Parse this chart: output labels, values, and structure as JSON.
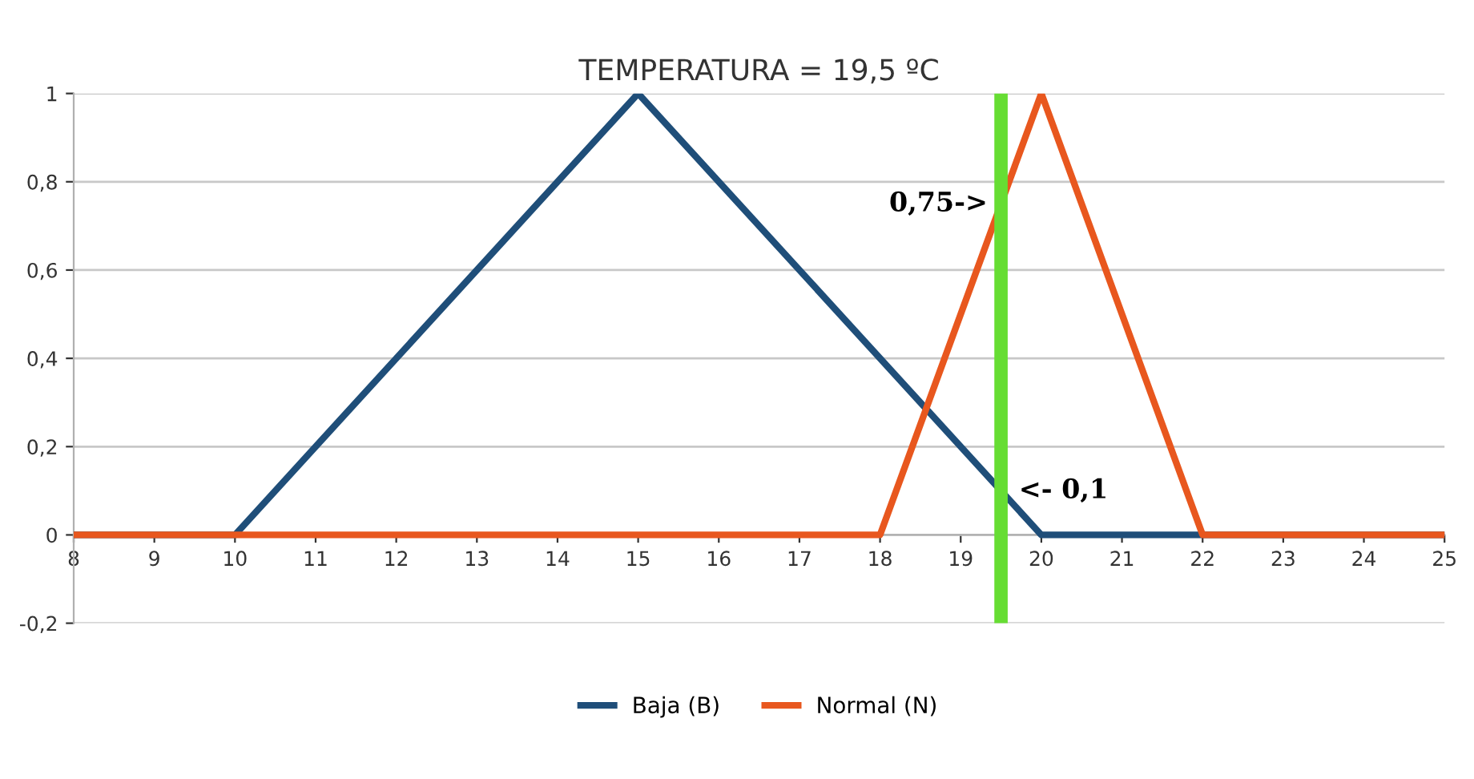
{
  "chart_data": {
    "type": "line",
    "title": "TEMPERATURA = 19,5 ºC",
    "series": [
      {
        "name": "Baja (B)",
        "color": "#1f4e79",
        "x": [
          8,
          10,
          15,
          20,
          25
        ],
        "values": [
          0,
          0,
          1,
          0,
          0
        ]
      },
      {
        "name": "Normal (N)",
        "color": "#e8571e",
        "x": [
          8,
          18,
          20,
          22,
          25
        ],
        "values": [
          0,
          0,
          1,
          0,
          0
        ]
      }
    ],
    "xlim": [
      8,
      25
    ],
    "xticks": [
      8,
      9,
      10,
      11,
      12,
      13,
      14,
      15,
      16,
      17,
      18,
      19,
      20,
      21,
      22,
      23,
      24,
      25
    ],
    "ylim": [
      -0.2,
      1
    ],
    "yticks": [
      {
        "value": -0.2,
        "label": "-0,2"
      },
      0,
      {
        "value": 0.2,
        "label": "0,2"
      },
      {
        "value": 0.4,
        "label": "0,4"
      },
      {
        "value": 0.6,
        "label": "0,6"
      },
      {
        "value": 0.8,
        "label": "0,8"
      },
      1
    ],
    "ref_lines": [
      {
        "axis": "x",
        "value": 19.5,
        "color": "#66dd33"
      }
    ],
    "annotations": [
      {
        "text": "0,75->",
        "x": 19.5,
        "y": 0.75
      },
      {
        "text": "<- 0,1",
        "x": 19.5,
        "y": 0.1
      }
    ],
    "grid": "y",
    "legend": "bottom",
    "marker": "none",
    "line_style": "solid"
  }
}
